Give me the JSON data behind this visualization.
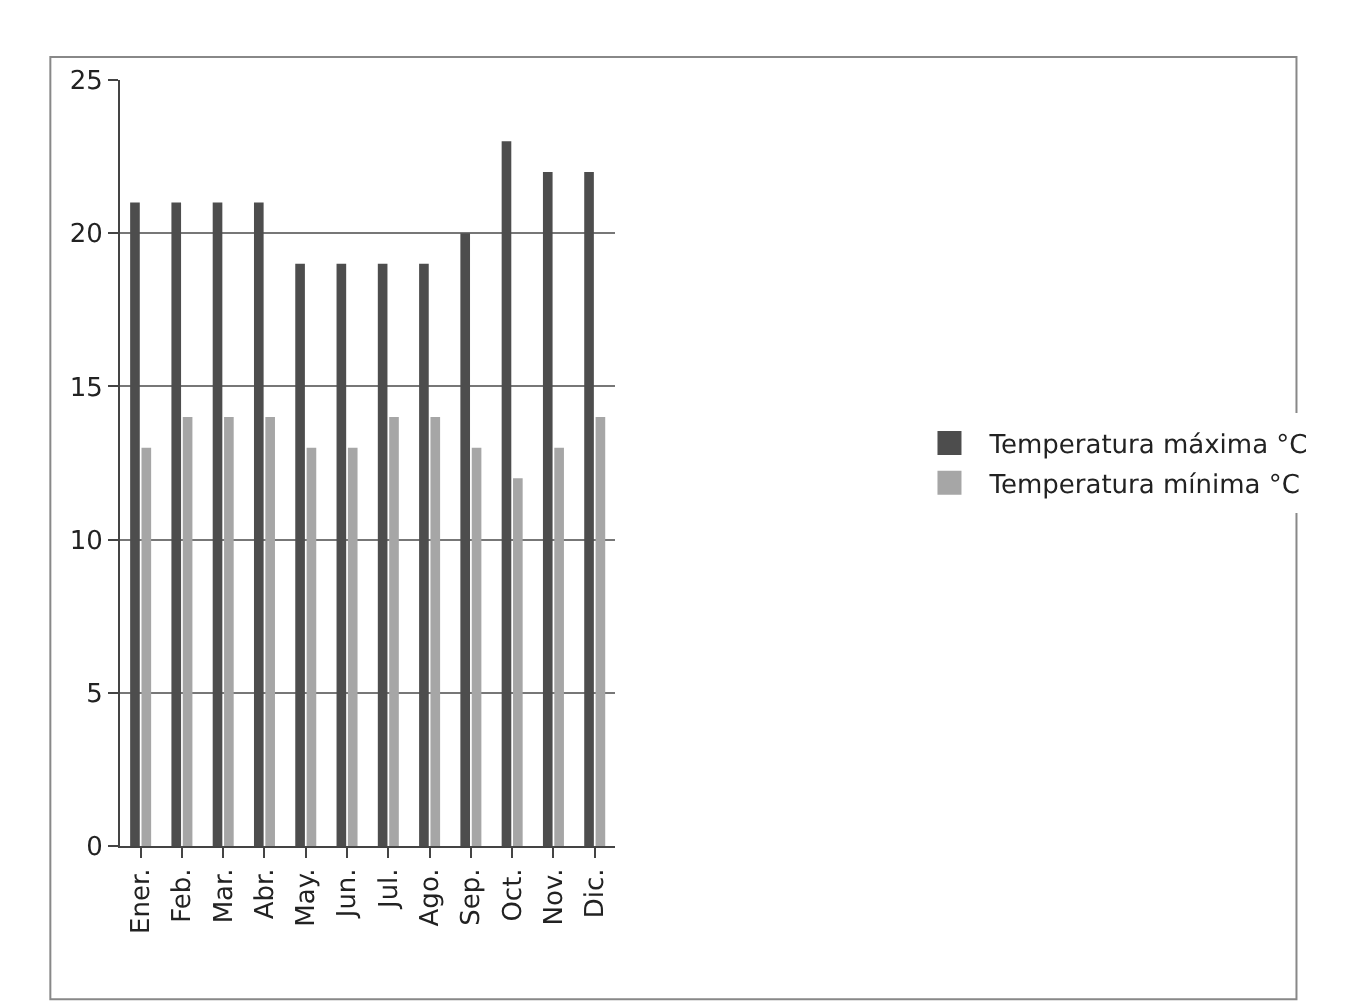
{
  "chart_data": {
    "type": "bar",
    "categories": [
      "Ener.",
      "Feb.",
      "Mar.",
      "Abr.",
      "May.",
      "Jun.",
      "Jul.",
      "Ago.",
      "Sep.",
      "Oct.",
      "Nov.",
      "Dic."
    ],
    "series": [
      {
        "name": "Temperatura máxima °C",
        "color": "#4d4d4d",
        "values": [
          21,
          21,
          21,
          21,
          19,
          19,
          19,
          19,
          20,
          23,
          22,
          22
        ]
      },
      {
        "name": "Temperatura mínima °C",
        "color": "#a6a6a6",
        "values": [
          13,
          14,
          14,
          14,
          13,
          13,
          14,
          14,
          13,
          12,
          13,
          14
        ]
      }
    ],
    "ylim": [
      0,
      25
    ],
    "yticks": [
      0,
      5,
      10,
      15,
      20,
      25
    ],
    "grid": "y",
    "legend": "right"
  }
}
